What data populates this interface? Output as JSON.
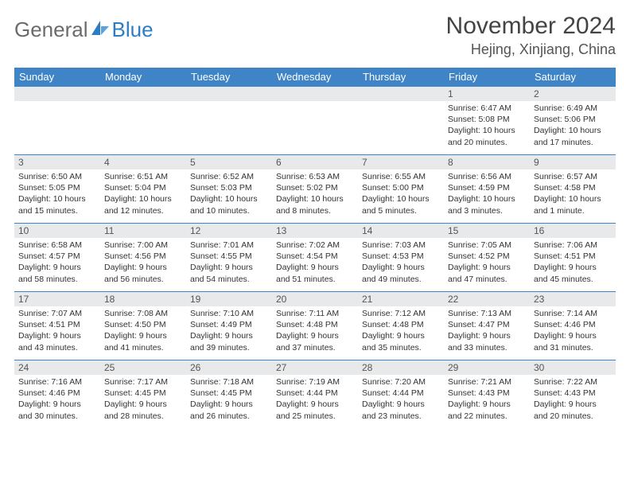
{
  "brand": {
    "general": "General",
    "blue": "Blue",
    "sail_color": "#2d7dc4",
    "text_gray": "#6b6b6b"
  },
  "header": {
    "month_title": "November 2024",
    "location": "Hejing, Xinjiang, China"
  },
  "colors": {
    "header_blue": "#3e84c6",
    "daynum_bg": "#e7e9eb",
    "border": "#3e84c6",
    "page_bg": "#ffffff"
  },
  "days_of_week": [
    "Sunday",
    "Monday",
    "Tuesday",
    "Wednesday",
    "Thursday",
    "Friday",
    "Saturday"
  ],
  "leading_blanks": 5,
  "days": [
    {
      "n": 1,
      "sunrise": "6:47 AM",
      "sunset": "5:08 PM",
      "daylight": "10 hours and 20 minutes."
    },
    {
      "n": 2,
      "sunrise": "6:49 AM",
      "sunset": "5:06 PM",
      "daylight": "10 hours and 17 minutes."
    },
    {
      "n": 3,
      "sunrise": "6:50 AM",
      "sunset": "5:05 PM",
      "daylight": "10 hours and 15 minutes."
    },
    {
      "n": 4,
      "sunrise": "6:51 AM",
      "sunset": "5:04 PM",
      "daylight": "10 hours and 12 minutes."
    },
    {
      "n": 5,
      "sunrise": "6:52 AM",
      "sunset": "5:03 PM",
      "daylight": "10 hours and 10 minutes."
    },
    {
      "n": 6,
      "sunrise": "6:53 AM",
      "sunset": "5:02 PM",
      "daylight": "10 hours and 8 minutes."
    },
    {
      "n": 7,
      "sunrise": "6:55 AM",
      "sunset": "5:00 PM",
      "daylight": "10 hours and 5 minutes."
    },
    {
      "n": 8,
      "sunrise": "6:56 AM",
      "sunset": "4:59 PM",
      "daylight": "10 hours and 3 minutes."
    },
    {
      "n": 9,
      "sunrise": "6:57 AM",
      "sunset": "4:58 PM",
      "daylight": "10 hours and 1 minute."
    },
    {
      "n": 10,
      "sunrise": "6:58 AM",
      "sunset": "4:57 PM",
      "daylight": "9 hours and 58 minutes."
    },
    {
      "n": 11,
      "sunrise": "7:00 AM",
      "sunset": "4:56 PM",
      "daylight": "9 hours and 56 minutes."
    },
    {
      "n": 12,
      "sunrise": "7:01 AM",
      "sunset": "4:55 PM",
      "daylight": "9 hours and 54 minutes."
    },
    {
      "n": 13,
      "sunrise": "7:02 AM",
      "sunset": "4:54 PM",
      "daylight": "9 hours and 51 minutes."
    },
    {
      "n": 14,
      "sunrise": "7:03 AM",
      "sunset": "4:53 PM",
      "daylight": "9 hours and 49 minutes."
    },
    {
      "n": 15,
      "sunrise": "7:05 AM",
      "sunset": "4:52 PM",
      "daylight": "9 hours and 47 minutes."
    },
    {
      "n": 16,
      "sunrise": "7:06 AM",
      "sunset": "4:51 PM",
      "daylight": "9 hours and 45 minutes."
    },
    {
      "n": 17,
      "sunrise": "7:07 AM",
      "sunset": "4:51 PM",
      "daylight": "9 hours and 43 minutes."
    },
    {
      "n": 18,
      "sunrise": "7:08 AM",
      "sunset": "4:50 PM",
      "daylight": "9 hours and 41 minutes."
    },
    {
      "n": 19,
      "sunrise": "7:10 AM",
      "sunset": "4:49 PM",
      "daylight": "9 hours and 39 minutes."
    },
    {
      "n": 20,
      "sunrise": "7:11 AM",
      "sunset": "4:48 PM",
      "daylight": "9 hours and 37 minutes."
    },
    {
      "n": 21,
      "sunrise": "7:12 AM",
      "sunset": "4:48 PM",
      "daylight": "9 hours and 35 minutes."
    },
    {
      "n": 22,
      "sunrise": "7:13 AM",
      "sunset": "4:47 PM",
      "daylight": "9 hours and 33 minutes."
    },
    {
      "n": 23,
      "sunrise": "7:14 AM",
      "sunset": "4:46 PM",
      "daylight": "9 hours and 31 minutes."
    },
    {
      "n": 24,
      "sunrise": "7:16 AM",
      "sunset": "4:46 PM",
      "daylight": "9 hours and 30 minutes."
    },
    {
      "n": 25,
      "sunrise": "7:17 AM",
      "sunset": "4:45 PM",
      "daylight": "9 hours and 28 minutes."
    },
    {
      "n": 26,
      "sunrise": "7:18 AM",
      "sunset": "4:45 PM",
      "daylight": "9 hours and 26 minutes."
    },
    {
      "n": 27,
      "sunrise": "7:19 AM",
      "sunset": "4:44 PM",
      "daylight": "9 hours and 25 minutes."
    },
    {
      "n": 28,
      "sunrise": "7:20 AM",
      "sunset": "4:44 PM",
      "daylight": "9 hours and 23 minutes."
    },
    {
      "n": 29,
      "sunrise": "7:21 AM",
      "sunset": "4:43 PM",
      "daylight": "9 hours and 22 minutes."
    },
    {
      "n": 30,
      "sunrise": "7:22 AM",
      "sunset": "4:43 PM",
      "daylight": "9 hours and 20 minutes."
    }
  ],
  "labels": {
    "sunrise": "Sunrise:",
    "sunset": "Sunset:",
    "daylight": "Daylight:"
  }
}
